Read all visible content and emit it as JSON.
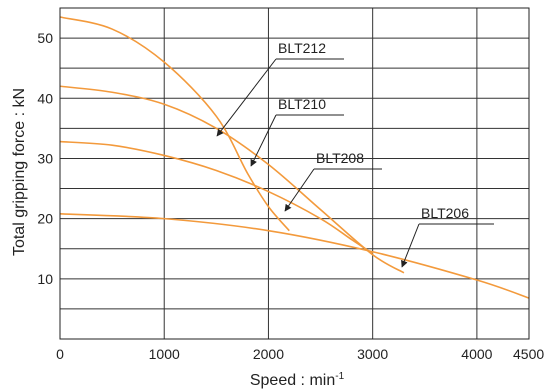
{
  "chart_data": {
    "type": "line",
    "xlabel": "Speed : min",
    "xlabel_superscript": "-1",
    "ylabel": "Total gripping force : kN",
    "xlim": [
      0,
      4500
    ],
    "ylim": [
      0,
      55
    ],
    "x_ticks": [
      "0",
      "1000",
      "2000",
      "3000",
      "4000",
      "4500"
    ],
    "y_ticks": [
      "10",
      "20",
      "30",
      "40",
      "50"
    ],
    "x_grid": [
      0,
      1000,
      2000,
      3000,
      4000,
      4500
    ],
    "y_grid": [
      0,
      5,
      10,
      15,
      20,
      25,
      30,
      35,
      40,
      45,
      50,
      55
    ],
    "grid": true,
    "line_color": "#F39A3C",
    "series": [
      {
        "name": "BLT212",
        "x": [
          0,
          500,
          1000,
          1500,
          1800,
          2000,
          2200
        ],
        "y": [
          53.5,
          51.5,
          46,
          37,
          27.5,
          22,
          18
        ]
      },
      {
        "name": "BLT210",
        "x": [
          0,
          500,
          1000,
          1500,
          2000,
          2500,
          3000,
          3300
        ],
        "y": [
          42,
          41,
          39,
          35,
          29,
          21.5,
          14,
          11
        ]
      },
      {
        "name": "BLT208",
        "x": [
          0,
          500,
          1000,
          1500,
          2000,
          2500,
          2800,
          3000
        ],
        "y": [
          32.8,
          32.2,
          30.5,
          28,
          24.5,
          20,
          16.5,
          14.2
        ]
      },
      {
        "name": "BLT206",
        "x": [
          0,
          1000,
          2000,
          3000,
          4000,
          4500
        ],
        "y": [
          20.8,
          20,
          18,
          14.5,
          9.8,
          6.8
        ]
      }
    ]
  }
}
